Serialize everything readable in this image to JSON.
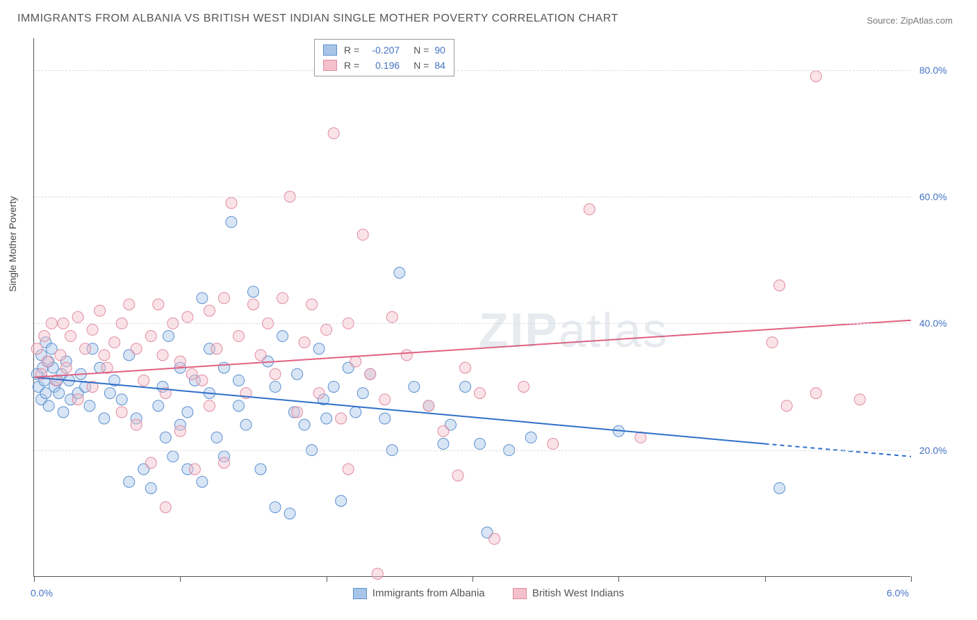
{
  "title": "IMMIGRANTS FROM ALBANIA VS BRITISH WEST INDIAN SINGLE MOTHER POVERTY CORRELATION CHART",
  "source_label": "Source:",
  "source_name": "ZipAtlas.com",
  "y_axis_title": "Single Mother Poverty",
  "watermark": "ZIPatlas",
  "chart": {
    "type": "scatter",
    "xlim": [
      0.0,
      6.0
    ],
    "ylim": [
      0.0,
      85.0
    ],
    "x_ticks": [
      0.0,
      1.0,
      2.0,
      3.0,
      4.0,
      5.0,
      6.0
    ],
    "x_tick_labels": {
      "0": "0.0%",
      "6": "6.0%"
    },
    "y_gridlines": [
      20.0,
      40.0,
      60.0,
      80.0
    ],
    "y_tick_labels": [
      "20.0%",
      "40.0%",
      "60.0%",
      "80.0%"
    ],
    "background_color": "#ffffff",
    "grid_color": "#dddddd",
    "axis_color": "#555555",
    "tick_label_color": "#4472c4",
    "marker_radius": 8,
    "marker_opacity": 0.45,
    "line_width": 2,
    "series": [
      {
        "name": "Immigrants from Albania",
        "color_fill": "#a8c5e8",
        "color_stroke": "#5a8fd0",
        "line_color": "#2e6fc9",
        "R": "-0.207",
        "N": "90",
        "trend": {
          "x1": 0.0,
          "y1": 31.5,
          "x2_solid": 5.0,
          "y2_solid": 21.0,
          "x2_dash": 6.0,
          "y2_dash": 19.0
        },
        "points": [
          [
            0.02,
            32
          ],
          [
            0.03,
            30
          ],
          [
            0.05,
            35
          ],
          [
            0.05,
            28
          ],
          [
            0.06,
            33
          ],
          [
            0.07,
            31
          ],
          [
            0.08,
            37
          ],
          [
            0.08,
            29
          ],
          [
            0.1,
            27
          ],
          [
            0.1,
            34
          ],
          [
            0.12,
            36
          ],
          [
            0.13,
            33
          ],
          [
            0.14,
            30
          ],
          [
            0.16,
            31
          ],
          [
            0.17,
            29
          ],
          [
            0.19,
            32
          ],
          [
            0.2,
            26
          ],
          [
            0.22,
            34
          ],
          [
            0.24,
            31
          ],
          [
            0.25,
            28
          ],
          [
            0.3,
            29
          ],
          [
            0.32,
            32
          ],
          [
            0.35,
            30
          ],
          [
            0.38,
            27
          ],
          [
            0.4,
            36
          ],
          [
            0.45,
            33
          ],
          [
            0.48,
            25
          ],
          [
            0.52,
            29
          ],
          [
            0.55,
            31
          ],
          [
            0.6,
            28
          ],
          [
            0.65,
            35
          ],
          [
            0.7,
            25
          ],
          [
            0.65,
            15
          ],
          [
            0.75,
            17
          ],
          [
            0.8,
            14
          ],
          [
            0.85,
            27
          ],
          [
            0.88,
            30
          ],
          [
            0.9,
            22
          ],
          [
            0.92,
            38
          ],
          [
            0.95,
            19
          ],
          [
            1.0,
            24
          ],
          [
            1.0,
            33
          ],
          [
            1.05,
            17
          ],
          [
            1.05,
            26
          ],
          [
            1.1,
            31
          ],
          [
            1.15,
            15
          ],
          [
            1.15,
            44
          ],
          [
            1.2,
            29
          ],
          [
            1.2,
            36
          ],
          [
            1.25,
            22
          ],
          [
            1.3,
            33
          ],
          [
            1.3,
            19
          ],
          [
            1.35,
            56
          ],
          [
            1.4,
            27
          ],
          [
            1.4,
            31
          ],
          [
            1.45,
            24
          ],
          [
            1.5,
            45
          ],
          [
            1.55,
            17
          ],
          [
            1.6,
            34
          ],
          [
            1.65,
            30
          ],
          [
            1.65,
            11
          ],
          [
            1.7,
            38
          ],
          [
            1.75,
            10
          ],
          [
            1.78,
            26
          ],
          [
            1.8,
            32
          ],
          [
            1.85,
            24
          ],
          [
            1.9,
            20
          ],
          [
            1.95,
            36
          ],
          [
            1.98,
            28
          ],
          [
            2.0,
            25
          ],
          [
            2.05,
            30
          ],
          [
            2.1,
            12
          ],
          [
            2.15,
            33
          ],
          [
            2.2,
            26
          ],
          [
            2.25,
            29
          ],
          [
            2.3,
            32
          ],
          [
            2.4,
            25
          ],
          [
            2.45,
            20
          ],
          [
            2.5,
            48
          ],
          [
            2.6,
            30
          ],
          [
            2.7,
            27
          ],
          [
            2.8,
            21
          ],
          [
            2.85,
            24
          ],
          [
            2.95,
            30
          ],
          [
            3.05,
            21
          ],
          [
            3.1,
            7
          ],
          [
            3.25,
            20
          ],
          [
            3.4,
            22
          ],
          [
            4.0,
            23
          ],
          [
            5.1,
            14
          ]
        ]
      },
      {
        "name": "British West Indians",
        "color_fill": "#f4c0cb",
        "color_stroke": "#e08aa0",
        "line_color": "#e06080",
        "R": "0.196",
        "N": "84",
        "trend": {
          "x1": 0.0,
          "y1": 31.5,
          "x2_solid": 6.0,
          "y2_solid": 40.5,
          "x2_dash": 6.0,
          "y2_dash": 40.5
        },
        "points": [
          [
            0.02,
            36
          ],
          [
            0.05,
            32
          ],
          [
            0.07,
            38
          ],
          [
            0.09,
            34
          ],
          [
            0.12,
            40
          ],
          [
            0.15,
            31
          ],
          [
            0.18,
            35
          ],
          [
            0.2,
            40
          ],
          [
            0.22,
            33
          ],
          [
            0.25,
            38
          ],
          [
            0.3,
            41
          ],
          [
            0.3,
            28
          ],
          [
            0.35,
            36
          ],
          [
            0.4,
            39
          ],
          [
            0.4,
            30
          ],
          [
            0.45,
            42
          ],
          [
            0.48,
            35
          ],
          [
            0.5,
            33
          ],
          [
            0.55,
            37
          ],
          [
            0.6,
            40
          ],
          [
            0.6,
            26
          ],
          [
            0.65,
            43
          ],
          [
            0.7,
            36
          ],
          [
            0.7,
            24
          ],
          [
            0.75,
            31
          ],
          [
            0.8,
            38
          ],
          [
            0.8,
            18
          ],
          [
            0.85,
            43
          ],
          [
            0.88,
            35
          ],
          [
            0.9,
            29
          ],
          [
            0.9,
            11
          ],
          [
            0.95,
            40
          ],
          [
            1.0,
            23
          ],
          [
            1.0,
            34
          ],
          [
            1.05,
            41
          ],
          [
            1.08,
            32
          ],
          [
            1.1,
            17
          ],
          [
            1.15,
            31
          ],
          [
            1.2,
            42
          ],
          [
            1.2,
            27
          ],
          [
            1.25,
            36
          ],
          [
            1.3,
            44
          ],
          [
            1.3,
            18
          ],
          [
            1.35,
            59
          ],
          [
            1.4,
            38
          ],
          [
            1.45,
            29
          ],
          [
            1.5,
            43
          ],
          [
            1.55,
            35
          ],
          [
            1.6,
            40
          ],
          [
            1.65,
            32
          ],
          [
            1.7,
            44
          ],
          [
            1.75,
            60
          ],
          [
            1.8,
            26
          ],
          [
            1.85,
            37
          ],
          [
            1.9,
            43
          ],
          [
            1.95,
            29
          ],
          [
            2.0,
            39
          ],
          [
            2.05,
            70
          ],
          [
            2.1,
            25
          ],
          [
            2.15,
            40
          ],
          [
            2.15,
            17
          ],
          [
            2.2,
            34
          ],
          [
            2.25,
            54
          ],
          [
            2.3,
            32
          ],
          [
            2.35,
            0.5
          ],
          [
            2.4,
            28
          ],
          [
            2.45,
            41
          ],
          [
            2.55,
            35
          ],
          [
            2.7,
            27
          ],
          [
            2.8,
            23
          ],
          [
            2.9,
            16
          ],
          [
            2.95,
            33
          ],
          [
            3.05,
            29
          ],
          [
            3.15,
            6
          ],
          [
            3.35,
            30
          ],
          [
            3.55,
            21
          ],
          [
            3.8,
            58
          ],
          [
            4.15,
            22
          ],
          [
            5.05,
            37
          ],
          [
            5.1,
            46
          ],
          [
            5.15,
            27
          ],
          [
            5.35,
            29
          ],
          [
            5.35,
            79
          ],
          [
            5.65,
            28
          ]
        ]
      }
    ]
  },
  "legend": {
    "stat_label": "R =",
    "n_label": "N ="
  }
}
